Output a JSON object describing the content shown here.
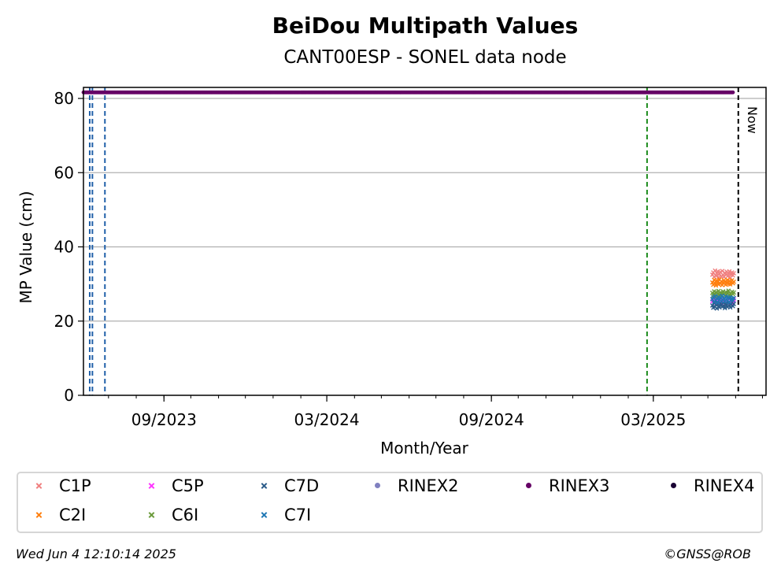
{
  "chart_data": {
    "type": "scatter",
    "title": "BeiDou Multipath Values",
    "subtitle": "CANT00ESP - SONEL data node",
    "xlabel": "Month/Year",
    "ylabel": "MP Value (cm)",
    "xlim": [
      "2023-06-03",
      "2025-07-05"
    ],
    "ylim": [
      0,
      80
    ],
    "yticks": [
      0,
      20,
      40,
      60,
      80
    ],
    "xticks": [
      {
        "date": "2023-09-01",
        "label": "09/2023"
      },
      {
        "date": "2024-03-01",
        "label": "03/2024"
      },
      {
        "date": "2024-09-01",
        "label": "09/2024"
      },
      {
        "date": "2025-03-01",
        "label": "03/2025"
      }
    ],
    "grid": "horizontal",
    "vlines": [
      {
        "date": "2023-06-10",
        "color": "#1f5fa8",
        "style": "dashed"
      },
      {
        "date": "2023-06-13",
        "color": "#1f5fa8",
        "style": "dashed"
      },
      {
        "date": "2023-06-27",
        "color": "#1f5fa8",
        "style": "dashed"
      },
      {
        "date": "2025-02-22",
        "color": "#1a8a1a",
        "style": "dashed"
      },
      {
        "date": "2025-06-04",
        "color": "#000000",
        "style": "dashed",
        "label": "Now"
      }
    ],
    "rinex_band": {
      "series": "RINEX3",
      "y": 81,
      "x_start": "2023-06-03",
      "x_end": "2025-05-29"
    },
    "series": [
      {
        "name": "C1P",
        "color": "#f08080",
        "marker": "x",
        "x_start": "2025-05-06",
        "x_end": "2025-05-30",
        "values": [
          32.5,
          33.1,
          31.9,
          33.6,
          32.2,
          32.9,
          33.4,
          31.8,
          32.7,
          33.2,
          32.0,
          33.5,
          32.4,
          31.9,
          33.0,
          32.6,
          33.3,
          32.1,
          32.8,
          33.4,
          31.7,
          32.5,
          33.1,
          32.3,
          32.9
        ]
      },
      {
        "name": "C2I",
        "color": "#ff7f0e",
        "marker": "x",
        "x_start": "2025-05-06",
        "x_end": "2025-05-30",
        "values": [
          30.4,
          29.8,
          31.1,
          30.2,
          29.6,
          30.9,
          30.5,
          29.9,
          31.2,
          30.1,
          30.7,
          29.7,
          30.3,
          31.0,
          30.6,
          29.8,
          30.4,
          31.1,
          30.0,
          30.8,
          29.9,
          30.5,
          31.0,
          30.2,
          30.6
        ]
      },
      {
        "name": "C5P",
        "color": "#ff33ff",
        "marker": "x",
        "x_start": "2025-05-06",
        "x_end": "2025-05-30",
        "values": [
          25.3,
          25.9,
          24.8,
          26.1,
          25.5,
          24.9,
          25.7,
          26.3,
          25.1,
          25.6,
          24.7,
          25.9,
          25.4,
          26.0,
          25.2,
          24.8,
          25.8,
          25.5,
          26.2,
          25.0,
          25.6,
          24.9,
          25.7,
          25.3,
          25.8
        ]
      },
      {
        "name": "C6I",
        "color": "#6a9a3a",
        "marker": "x",
        "x_start": "2025-05-06",
        "x_end": "2025-05-30",
        "values": [
          27.6,
          26.9,
          28.0,
          27.2,
          27.8,
          26.7,
          27.4,
          28.1,
          27.0,
          27.7,
          26.8,
          27.5,
          28.0,
          27.3,
          26.9,
          27.8,
          27.1,
          27.6,
          28.2,
          27.0,
          27.4,
          26.8,
          27.9,
          27.3,
          27.7
        ]
      },
      {
        "name": "C7D",
        "color": "#2b5c8a",
        "marker": "x",
        "x_start": "2025-05-06",
        "x_end": "2025-05-30",
        "values": [
          24.2,
          23.6,
          24.9,
          23.8,
          24.5,
          23.4,
          24.7,
          24.0,
          23.7,
          24.8,
          24.3,
          23.9,
          25.0,
          24.1,
          23.5,
          24.6,
          24.4,
          23.8,
          24.9,
          24.2,
          23.7,
          24.5,
          25.1,
          24.0,
          24.6
        ]
      },
      {
        "name": "C7I",
        "color": "#1f77b4",
        "marker": "x",
        "x_start": "2025-05-06",
        "x_end": "2025-05-30",
        "values": [
          25.9,
          26.4,
          25.2,
          26.7,
          25.6,
          26.1,
          25.0,
          26.5,
          25.8,
          26.2,
          25.4,
          26.8,
          25.7,
          26.0,
          25.3,
          26.6,
          25.9,
          25.5,
          26.3,
          25.1,
          26.4,
          25.8,
          26.1,
          25.6,
          26.2
        ]
      },
      {
        "name": "RINEX2",
        "color": "#8080c0",
        "marker": "dot",
        "values": []
      },
      {
        "name": "RINEX3",
        "color": "#660066",
        "marker": "dot",
        "values": []
      },
      {
        "name": "RINEX4",
        "color": "#1a0033",
        "marker": "dot",
        "values": []
      }
    ]
  },
  "legend_layout": [
    [
      "C1P",
      "C5P",
      "C7D",
      "RINEX2",
      "RINEX3",
      "RINEX4"
    ],
    [
      "C2I",
      "C6I",
      "C7I"
    ]
  ],
  "footer": {
    "timestamp": "Wed Jun  4 12:10:14 2025",
    "credit": "©GNSS@ROB"
  }
}
